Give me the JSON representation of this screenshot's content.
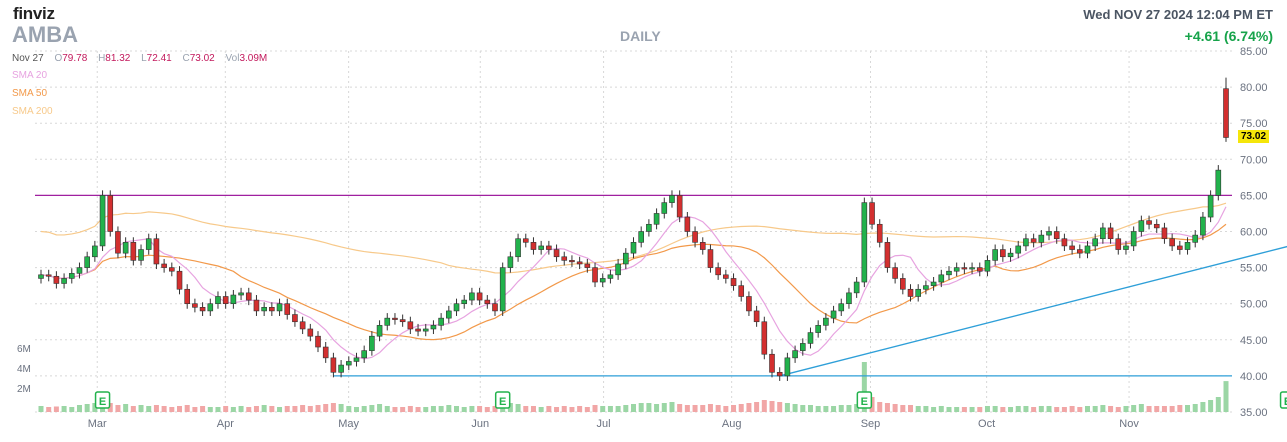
{
  "header": {
    "logo": "finviz",
    "ticker": "AMBA",
    "period": "DAILY",
    "datetime": "Wed NOV 27 2024 12:04 PM ET",
    "change": "+4.61 (6.74%)"
  },
  "ohlc": {
    "date": "Nov 27",
    "open_label": "O",
    "open": "79.78",
    "high_label": "H",
    "high": "81.32",
    "low_label": "L",
    "low": "72.41",
    "close_label": "C",
    "close": "73.02",
    "vol_label": "Vol",
    "volume": "3.09M"
  },
  "legend": [
    {
      "label": "SMA 20",
      "color": "#e7a3e0"
    },
    {
      "label": "SMA 50",
      "color": "#f2994a"
    },
    {
      "label": "SMA 200",
      "color": "#f7c98a"
    }
  ],
  "last_price": "73.02",
  "colors": {
    "up": "#22b24c",
    "down": "#d32f2f",
    "trend": "#2e9fd8",
    "resistance": "#a020a0"
  },
  "chart_data": {
    "type": "candlestick",
    "x_labels": [
      "Mar",
      "Apr",
      "May",
      "Jun",
      "Jul",
      "Aug",
      "Sep",
      "Oct",
      "Nov"
    ],
    "y_ticks": [
      35,
      40,
      45,
      50,
      55,
      60,
      65,
      70,
      75,
      80,
      85
    ],
    "y_tick_labels": [
      "35.00",
      "40.00",
      "45.00",
      "50.00",
      "55.00",
      "60.00",
      "65.00",
      "70.00",
      "75.00",
      "80.00",
      "85.00"
    ],
    "ylim": [
      35,
      85
    ],
    "volume_labels": [
      "6M",
      "4M",
      "2M"
    ],
    "grid": true,
    "closes": [
      54.0,
      53.8,
      52.8,
      53.5,
      54.2,
      55.0,
      56.5,
      58.0,
      65.0,
      60.0,
      57.0,
      58.5,
      56.0,
      57.5,
      59.0,
      55.5,
      55.0,
      54.5,
      52.0,
      50.0,
      49.5,
      49.0,
      50.0,
      51.0,
      50.0,
      51.2,
      51.5,
      50.5,
      49.0,
      49.5,
      49.0,
      50.0,
      48.5,
      47.5,
      46.5,
      45.5,
      44.0,
      42.5,
      40.5,
      41.5,
      42.0,
      42.5,
      43.5,
      45.5,
      47.0,
      48.0,
      47.8,
      47.5,
      46.5,
      46.2,
      46.5,
      47.0,
      48.0,
      49.0,
      50.0,
      50.5,
      51.5,
      50.5,
      50.0,
      49.0,
      55.0,
      56.5,
      59.0,
      58.5,
      57.5,
      58.0,
      57.5,
      56.5,
      56.0,
      55.8,
      55.5,
      55.0,
      53.0,
      53.5,
      54.0,
      55.5,
      57.0,
      58.5,
      60.0,
      61.0,
      62.5,
      64.0,
      65.0,
      62.0,
      60.0,
      58.5,
      57.5,
      55.0,
      54.0,
      53.5,
      52.5,
      51.0,
      49.0,
      47.5,
      43.0,
      40.5,
      40.0,
      42.5,
      43.5,
      44.5,
      46.0,
      47.0,
      48.0,
      49.0,
      50.0,
      51.5,
      53.0,
      64.0,
      61.0,
      58.5,
      55.0,
      53.5,
      52.0,
      51.0,
      52.0,
      52.5,
      53.0,
      54.0,
      54.5,
      55.0,
      54.8,
      55.0,
      54.5,
      56.0,
      57.5,
      56.5,
      57.0,
      58.0,
      59.0,
      58.5,
      59.5,
      60.0,
      59.0,
      58.0,
      57.5,
      57.0,
      58.0,
      59.0,
      60.5,
      59.0,
      57.5,
      58.0,
      60.0,
      61.5,
      61.0,
      60.5,
      59.0,
      58.0,
      57.5,
      58.5,
      59.5,
      62.0,
      65.0,
      68.5,
      73.02
    ],
    "volumes_millions": [
      0.6,
      0.5,
      0.55,
      0.6,
      0.5,
      0.7,
      0.8,
      0.9,
      1.1,
      0.9,
      0.7,
      0.8,
      0.6,
      0.7,
      0.6,
      0.7,
      0.6,
      0.5,
      0.6,
      0.7,
      0.5,
      0.6,
      0.5,
      0.5,
      0.6,
      0.5,
      0.6,
      0.5,
      0.6,
      0.7,
      0.6,
      0.5,
      0.6,
      0.6,
      0.7,
      0.6,
      0.7,
      0.8,
      0.9,
      0.8,
      0.6,
      0.5,
      0.6,
      0.7,
      0.8,
      0.6,
      0.5,
      0.5,
      0.6,
      0.5,
      0.5,
      0.6,
      0.6,
      0.7,
      0.6,
      0.5,
      0.6,
      0.6,
      0.5,
      0.6,
      2.0,
      0.9,
      0.8,
      0.6,
      0.6,
      0.5,
      0.6,
      0.5,
      0.6,
      0.5,
      0.6,
      0.5,
      0.7,
      0.6,
      0.6,
      0.6,
      0.7,
      0.8,
      0.9,
      0.9,
      0.8,
      0.9,
      1.0,
      0.8,
      0.7,
      0.7,
      0.7,
      0.8,
      0.7,
      0.6,
      0.7,
      0.8,
      0.9,
      1.0,
      1.2,
      1.1,
      1.0,
      0.9,
      0.8,
      0.7,
      0.7,
      0.6,
      0.6,
      0.6,
      0.7,
      0.7,
      0.8,
      5.0,
      1.5,
      1.0,
      0.9,
      0.8,
      0.7,
      0.7,
      0.6,
      0.6,
      0.5,
      0.6,
      0.5,
      0.5,
      0.5,
      0.5,
      0.5,
      0.6,
      0.6,
      0.5,
      0.5,
      0.6,
      0.6,
      0.5,
      0.6,
      0.6,
      0.5,
      0.5,
      0.6,
      0.5,
      0.6,
      0.6,
      0.7,
      0.6,
      0.5,
      0.6,
      0.7,
      0.8,
      0.6,
      0.6,
      0.6,
      0.6,
      0.7,
      0.7,
      0.8,
      1.0,
      1.2,
      1.5,
      3.09
    ],
    "events": [
      {
        "label": "E",
        "index": 8
      },
      {
        "label": "E",
        "index": 60
      },
      {
        "label": "E",
        "index": 107
      },
      {
        "label": "E",
        "index": 162
      }
    ],
    "lines": {
      "resistance": 65.0,
      "support": 40.0,
      "trend_start": {
        "index": 96,
        "value": 40.0
      },
      "trend_end": {
        "index": 163,
        "value": 58.2
      }
    }
  }
}
